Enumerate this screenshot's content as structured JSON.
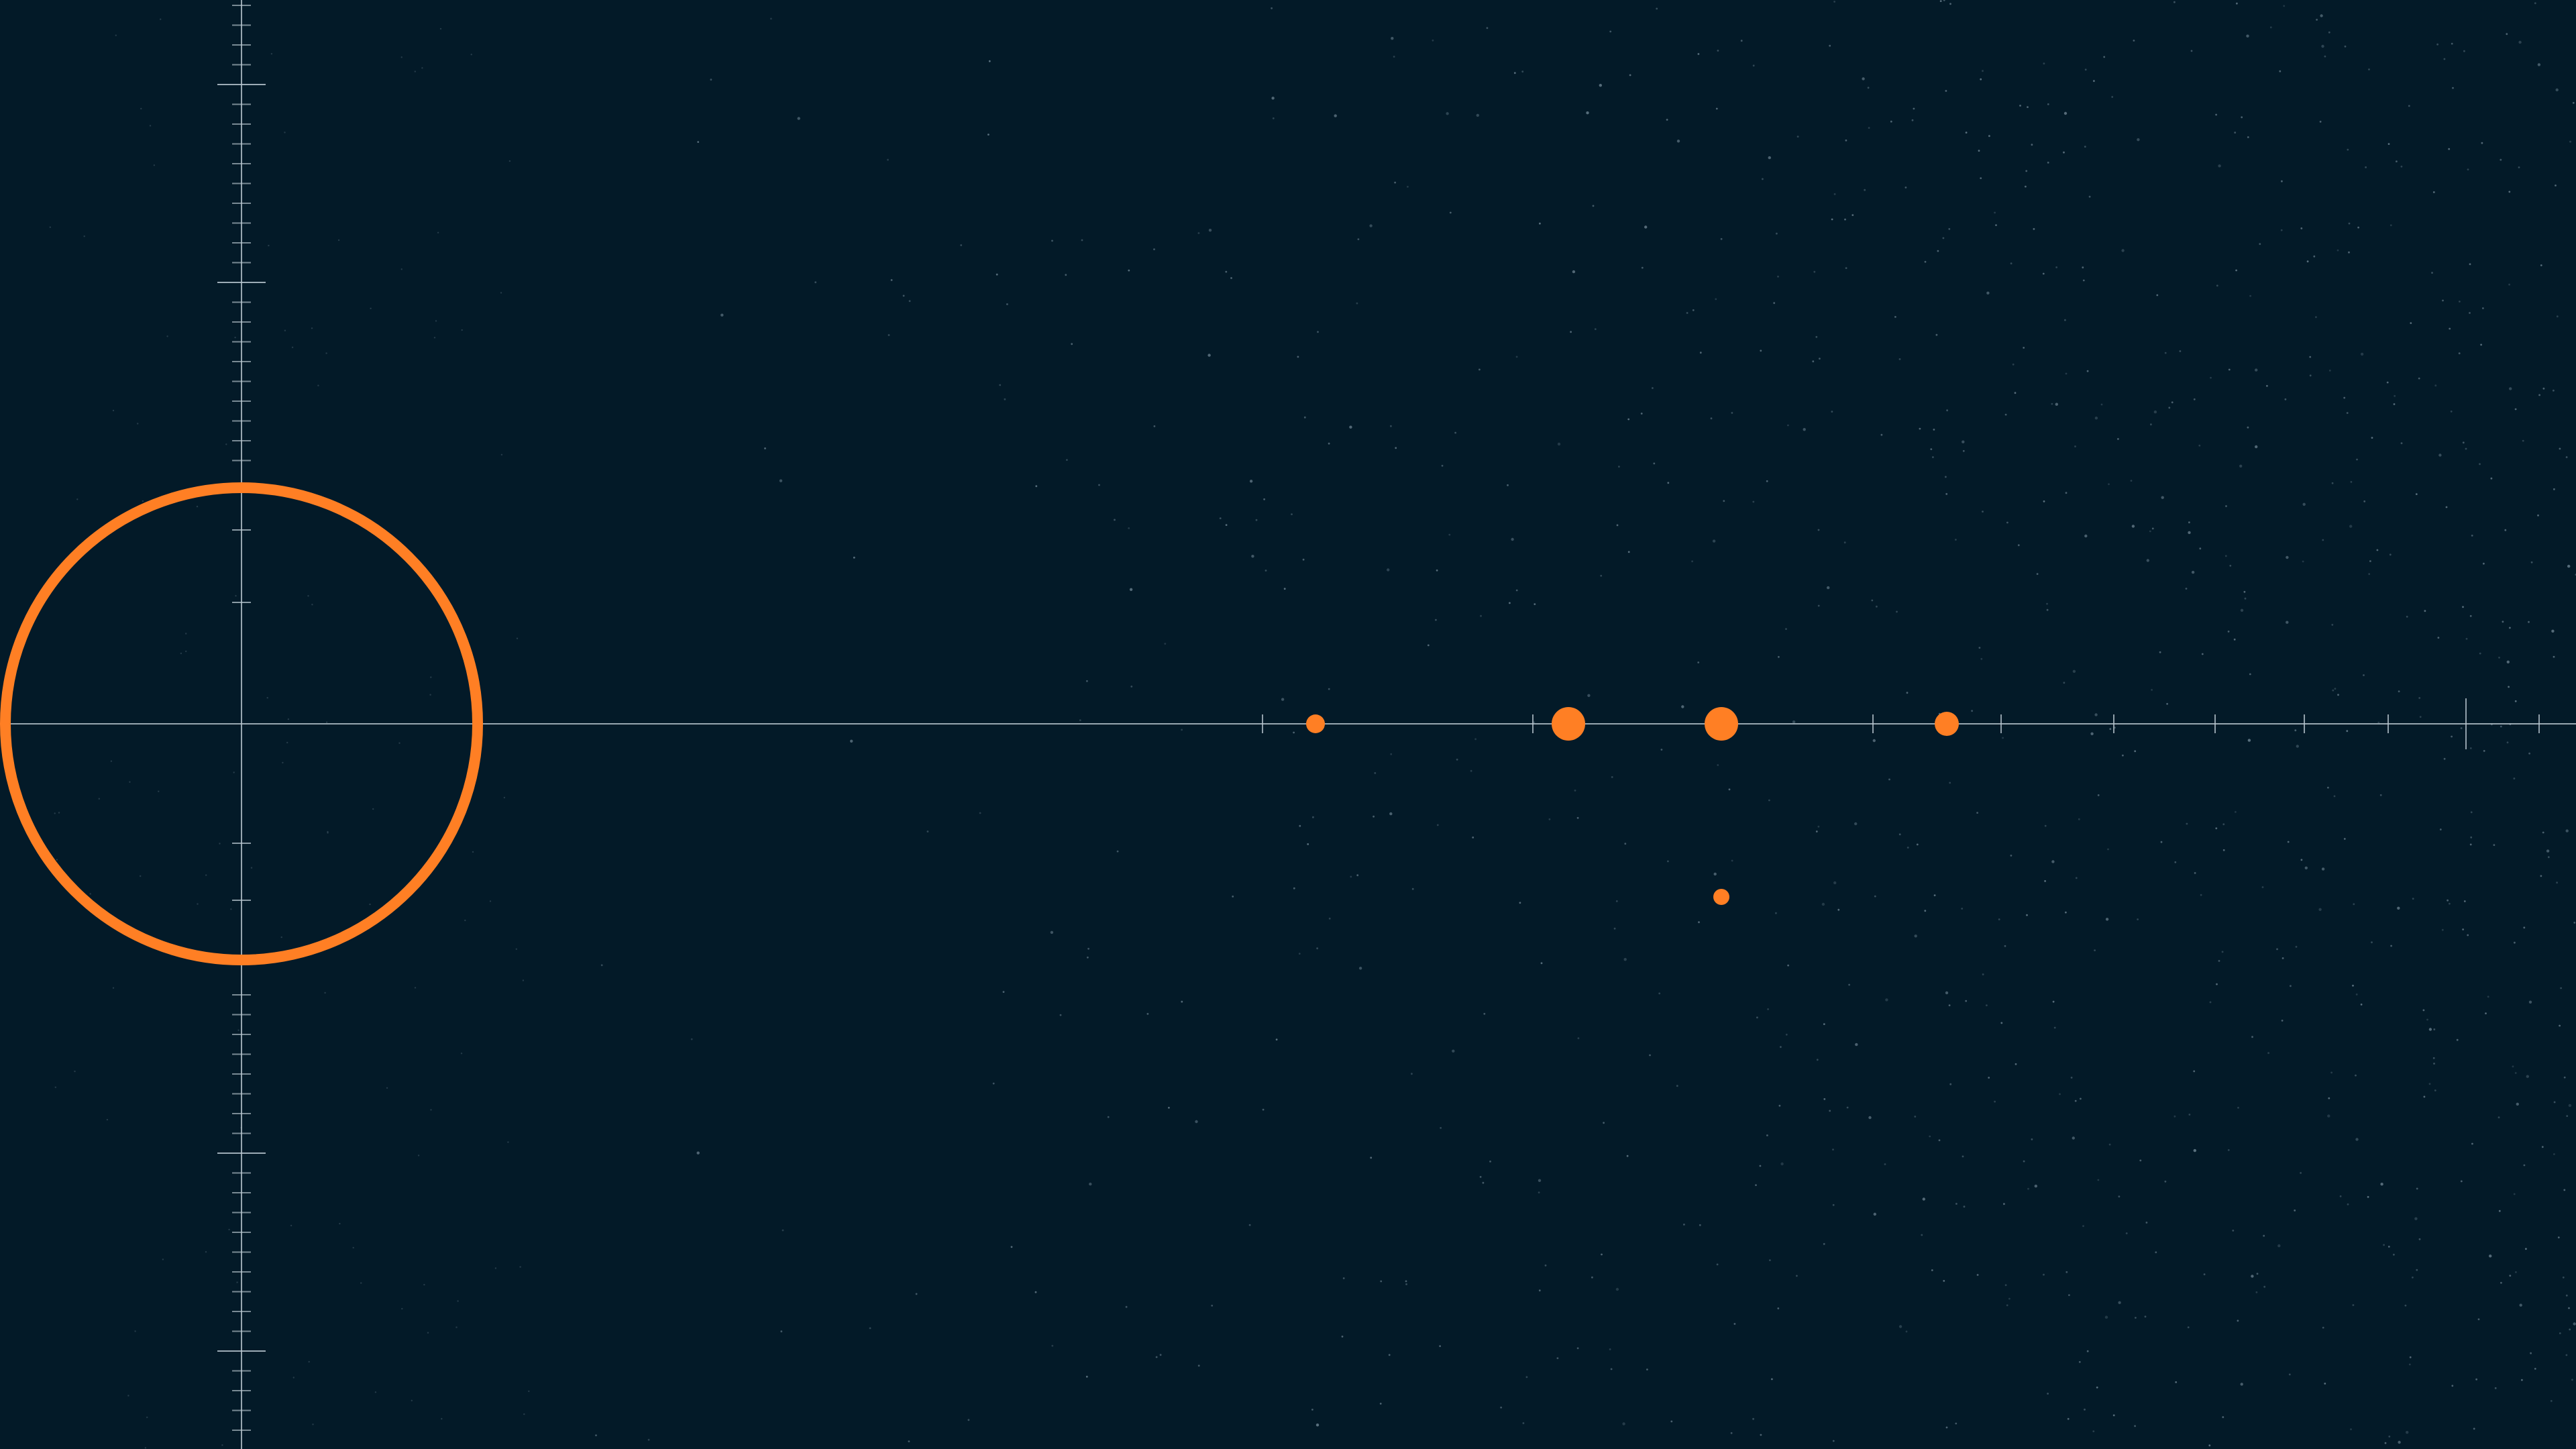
{
  "colors": {
    "background": "#031a28",
    "accent": "#ff7f24",
    "axis": "#b9c6cf",
    "star": "#7f95a3"
  },
  "scene": {
    "description_hidden": "",
    "objects": [
      {
        "name": "large-orbit-ring",
        "icon": "ring-icon",
        "kind": "ring"
      },
      {
        "name": "body-1",
        "icon": "dot-icon",
        "kind": "small"
      },
      {
        "name": "body-2",
        "icon": "dot-icon",
        "kind": "large"
      },
      {
        "name": "body-3",
        "icon": "dot-icon",
        "kind": "large"
      },
      {
        "name": "body-4",
        "icon": "dot-icon",
        "kind": "medium"
      },
      {
        "name": "body-5",
        "icon": "dot-icon",
        "kind": "small"
      }
    ]
  }
}
